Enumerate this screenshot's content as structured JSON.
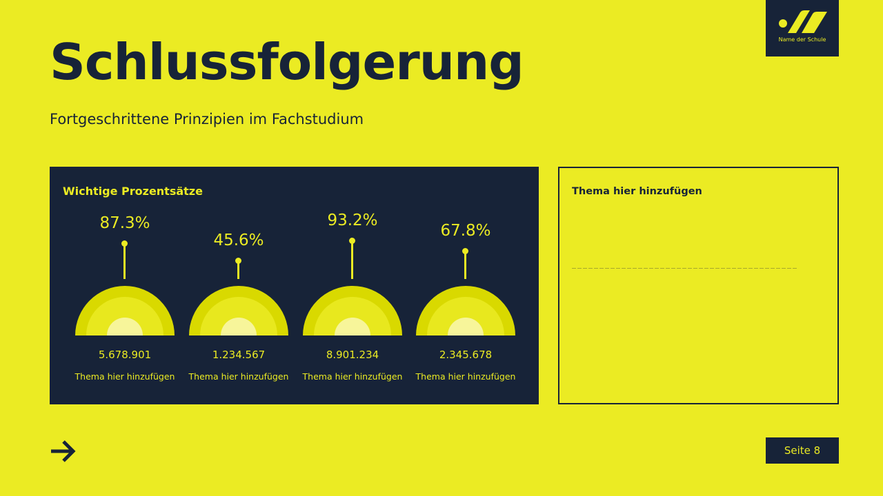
{
  "logo": {
    "school_name": "Name der Schule",
    "icon": "school-logo-icon"
  },
  "header": {
    "title": "Schlussfolgerung",
    "subtitle": "Fortgeschrittene Prinzipien im Fachstudium"
  },
  "panel": {
    "title": "Wichtige Prozentsätze",
    "gauges": [
      {
        "percent": "87.3%",
        "value_pct": 87.3,
        "number": "5.678.901",
        "label": "Thema hier hinzufügen"
      },
      {
        "percent": "45.6%",
        "value_pct": 45.6,
        "number": "1.234.567",
        "label": "Thema hier hinzufügen"
      },
      {
        "percent": "93.2%",
        "value_pct": 93.2,
        "number": "8.901.234",
        "label": "Thema hier hinzufügen"
      },
      {
        "percent": "67.8%",
        "value_pct": 67.8,
        "number": "2.345.678",
        "label": "Thema hier hinzufügen"
      }
    ]
  },
  "card": {
    "title": "Thema hier hinzufügen"
  },
  "footer": {
    "page_label": "Seite 8",
    "next_icon": "arrow-right-icon"
  },
  "colors": {
    "background": "#ebeb23",
    "navy": "#172338",
    "gauge_outer": "#d9d900",
    "gauge_mid": "#e8e81e",
    "gauge_inner": "#f7f59a"
  }
}
